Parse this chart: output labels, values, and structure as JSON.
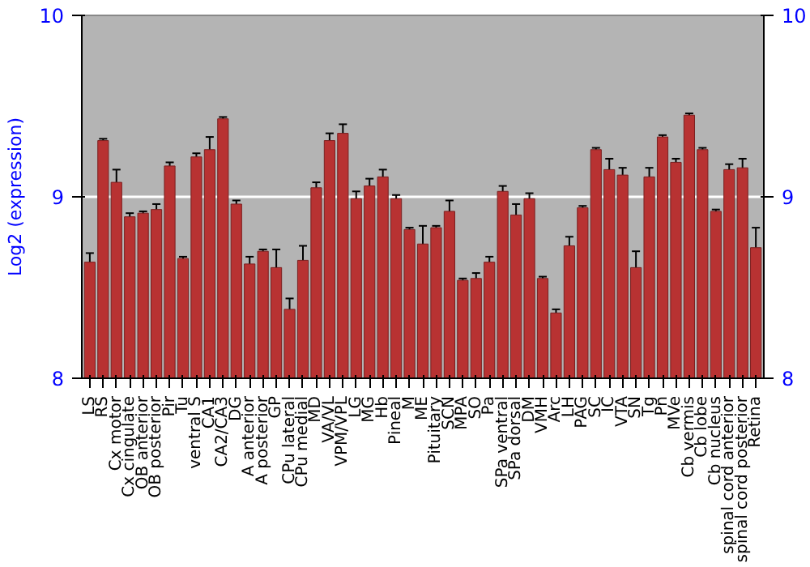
{
  "chart_data": {
    "type": "bar",
    "ylabel": "Log2 (expression)",
    "categories": [
      "LS",
      "RS",
      "Cx motor",
      "Cx cingulate",
      "OB anterior",
      "OB posterior",
      "Pir",
      "Tu",
      "ventral S",
      "CA1",
      "CA2/CA3",
      "DG",
      "A anterior",
      "A posterior",
      "GP",
      "CPu lateral",
      "CPu medial",
      "MD",
      "VA/VL",
      "VPM/VPL",
      "LG",
      "MG",
      "Hb",
      "Pineal",
      "M",
      "ME",
      "Pituitary",
      "SCN",
      "MPA",
      "SO",
      "Pa",
      "SPa ventral",
      "SPa dorsal",
      "DM",
      "VMH",
      "Arc",
      "LH",
      "PAG",
      "SC",
      "IC",
      "VTA",
      "SN",
      "Tg",
      "Pn",
      "MVe",
      "Cb vermis",
      "Cb lobe",
      "Cb nucleus",
      "spinal cord anterior",
      "spinal cord posterior",
      "Retina"
    ],
    "values": [
      8.64,
      9.31,
      9.08,
      8.89,
      8.91,
      8.93,
      9.17,
      8.66,
      9.22,
      9.26,
      9.43,
      8.96,
      8.63,
      8.7,
      8.61,
      8.38,
      8.65,
      9.05,
      9.31,
      9.35,
      8.99,
      9.06,
      9.11,
      8.99,
      8.82,
      8.74,
      8.83,
      8.92,
      8.54,
      8.55,
      8.64,
      9.03,
      8.9,
      8.99,
      8.55,
      8.36,
      8.73,
      8.94,
      9.26,
      9.15,
      9.12,
      8.61,
      9.11,
      9.33,
      9.19,
      9.45,
      9.26,
      8.92,
      9.15,
      9.16,
      8.72
    ],
    "errors": [
      0.05,
      0.01,
      0.07,
      0.02,
      0.01,
      0.03,
      0.02,
      0.01,
      0.02,
      0.07,
      0.01,
      0.02,
      0.04,
      0.01,
      0.1,
      0.06,
      0.08,
      0.03,
      0.04,
      0.05,
      0.04,
      0.04,
      0.04,
      0.02,
      0.01,
      0.1,
      0.01,
      0.06,
      0.01,
      0.03,
      0.03,
      0.03,
      0.06,
      0.03,
      0.01,
      0.02,
      0.05,
      0.01,
      0.01,
      0.06,
      0.04,
      0.09,
      0.05,
      0.01,
      0.02,
      0.01,
      0.01,
      0.01,
      0.03,
      0.05,
      0.11
    ],
    "color": "#b83232",
    "ylim": [
      8,
      10
    ],
    "yticks": [
      8,
      9,
      10
    ],
    "y2lim": [
      8,
      10
    ],
    "y2ticks": [
      8,
      9,
      10
    ],
    "grid": "y"
  }
}
